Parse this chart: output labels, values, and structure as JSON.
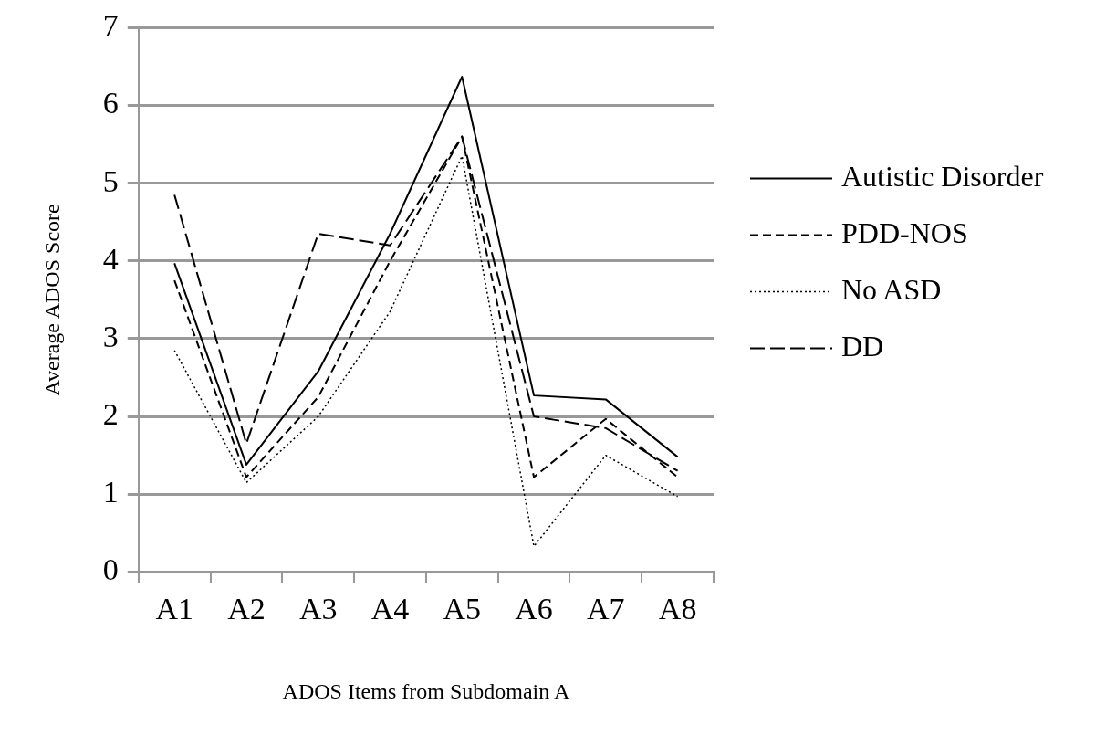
{
  "chart_data": {
    "type": "line",
    "xlabel": "ADOS Items from Subdomain A",
    "ylabel": "Average ADOS Score",
    "categories": [
      "A1",
      "A2",
      "A3",
      "A4",
      "A5",
      "A6",
      "A7",
      "A8"
    ],
    "series": [
      {
        "name": "Autistic Disorder",
        "color": "#000000",
        "line_style": "solid",
        "values": [
          3.97,
          1.38,
          2.58,
          4.35,
          6.37,
          2.27,
          2.22,
          1.48
        ]
      },
      {
        "name": "PDD-NOS",
        "color": "#000000",
        "line_style": "dashed",
        "values": [
          3.75,
          1.22,
          2.25,
          4.0,
          5.6,
          1.22,
          1.97,
          1.22
        ]
      },
      {
        "name": "No ASD",
        "color": "#000000",
        "line_style": "dotted",
        "values": [
          2.85,
          1.15,
          2.0,
          3.35,
          5.35,
          0.33,
          1.5,
          0.97
        ]
      },
      {
        "name": "DD",
        "color": "#000000",
        "line_style": "longdash",
        "values": [
          4.85,
          1.65,
          4.35,
          4.2,
          5.6,
          2.0,
          1.85,
          1.3
        ]
      }
    ],
    "ylim": [
      0,
      7
    ],
    "yticks": [
      0,
      1,
      2,
      3,
      4,
      5,
      6,
      7
    ],
    "grid": "y",
    "legend": "right",
    "marker": "none"
  }
}
